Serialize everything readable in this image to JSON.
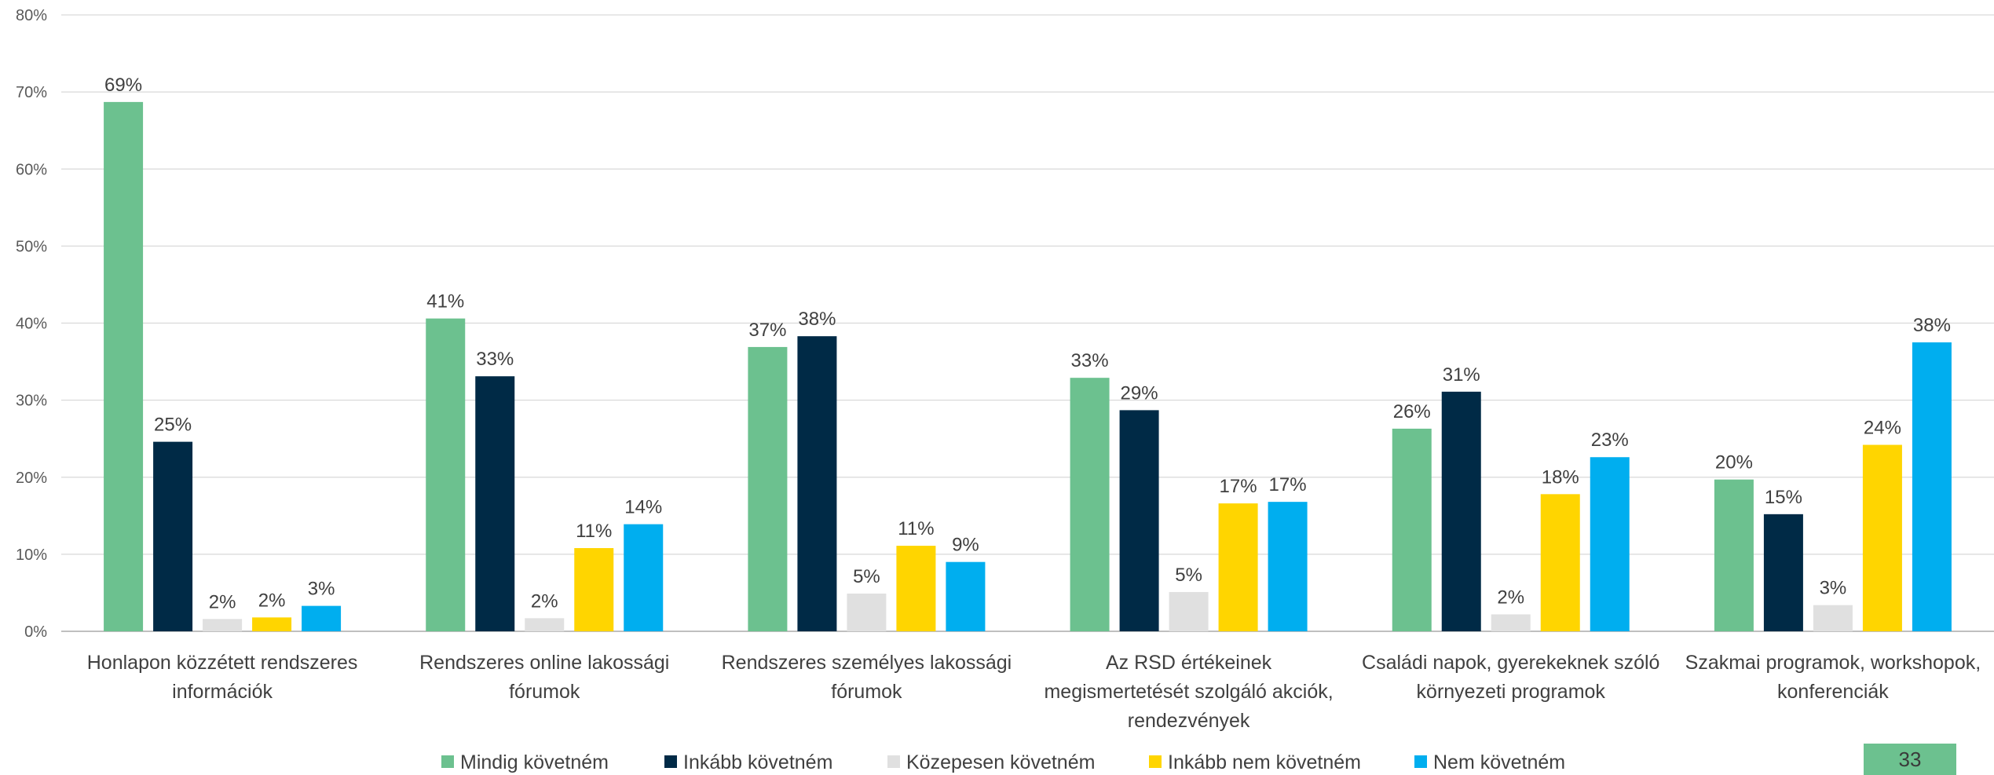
{
  "chart_data": {
    "type": "bar",
    "categories": [
      [
        "Honlapon közzétett rendszeres",
        "információk"
      ],
      [
        "Rendszeres online lakossági",
        "fórumok"
      ],
      [
        "Rendszeres személyes lakossági",
        "fórumok"
      ],
      [
        "Az RSD értékeinek",
        "megismertetését szolgáló akciók,",
        "rendezvények"
      ],
      [
        "Családi napok, gyerekeknek szóló",
        "környezeti programok"
      ],
      [
        "Szakmai programok, workshopok,",
        "konferenciák"
      ]
    ],
    "series": [
      {
        "name": "Mindig követném",
        "color": "#6cc18f",
        "values": [
          68.7,
          40.6,
          36.9,
          32.9,
          26.3,
          19.7
        ],
        "labels": [
          "69%",
          "41%",
          "37%",
          "33%",
          "26%",
          "20%"
        ]
      },
      {
        "name": "Inkább követném",
        "color": "#002a46",
        "values": [
          24.6,
          33.1,
          38.3,
          28.7,
          31.1,
          15.2
        ],
        "labels": [
          "25%",
          "33%",
          "38%",
          "29%",
          "31%",
          "15%"
        ]
      },
      {
        "name": "Közepesen követném",
        "color": "#e0e0e0",
        "values": [
          1.6,
          1.7,
          4.9,
          5.1,
          2.2,
          3.4
        ],
        "labels": [
          "2%",
          "2%",
          "5%",
          "5%",
          "2%",
          "3%"
        ]
      },
      {
        "name": "Inkább nem követném",
        "color": "#ffd500",
        "values": [
          1.8,
          10.8,
          11.1,
          16.6,
          17.8,
          24.2
        ],
        "labels": [
          "2%",
          "11%",
          "11%",
          "17%",
          "18%",
          "24%"
        ]
      },
      {
        "name": "Nem követném",
        "color": "#00aeef",
        "values": [
          3.3,
          13.9,
          9.0,
          16.8,
          22.6,
          37.5
        ],
        "labels": [
          "3%",
          "14%",
          "9%",
          "17%",
          "23%",
          "38%"
        ]
      }
    ],
    "yticks": [
      "0%",
      "10%",
      "20%",
      "30%",
      "40%",
      "50%",
      "60%",
      "70%",
      "80%"
    ],
    "ylim": [
      0,
      80
    ],
    "grid": true,
    "legend": "bottom"
  },
  "page_number": "33"
}
